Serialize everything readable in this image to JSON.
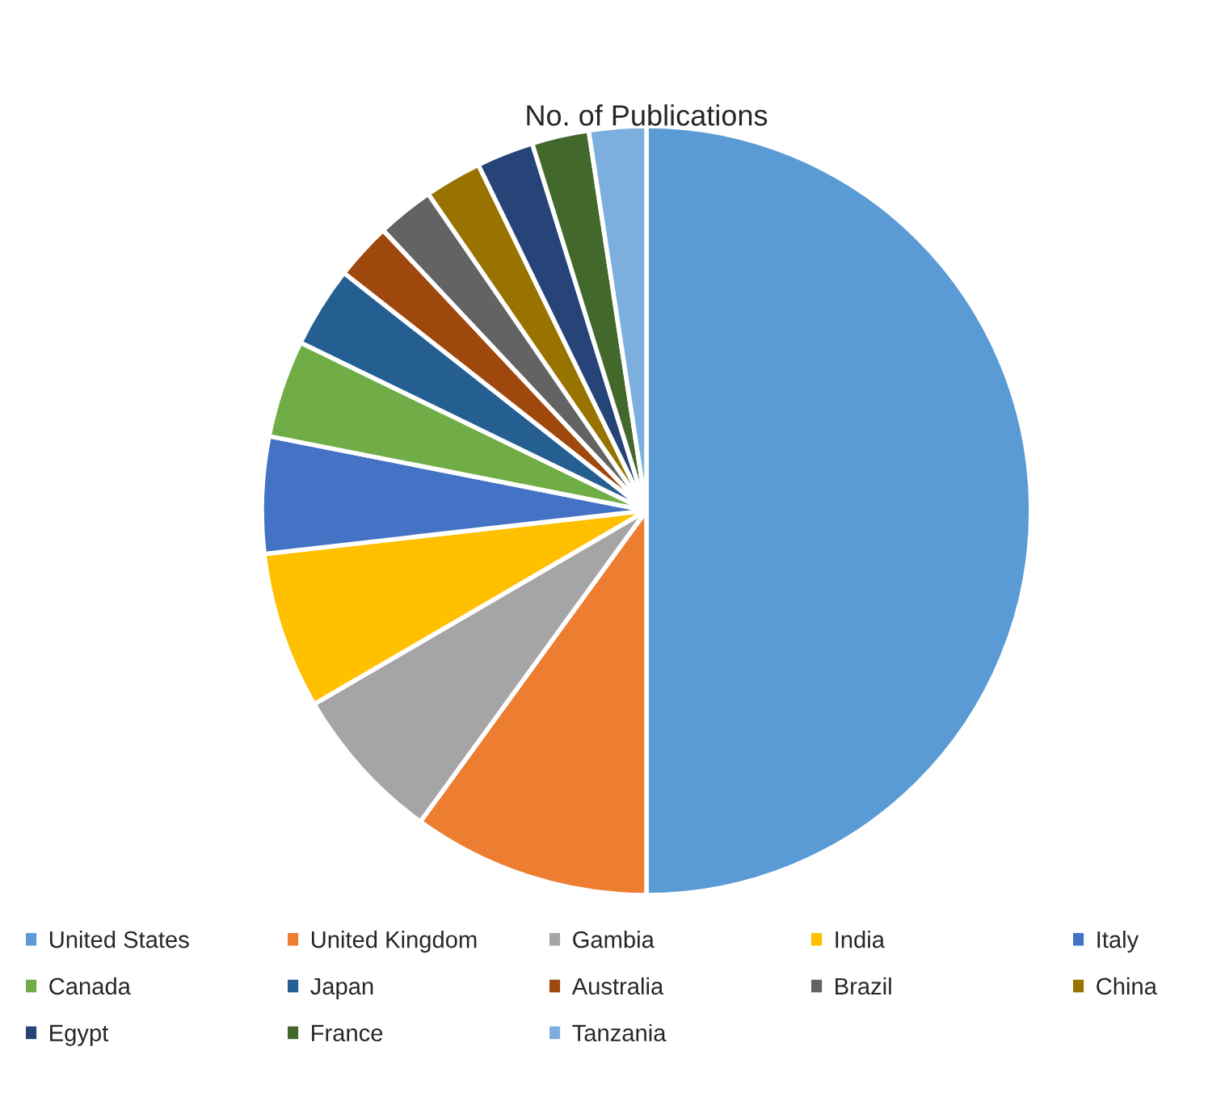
{
  "chart_data": {
    "type": "pie",
    "title": "No. of Publications",
    "categories": [
      "United States",
      "United Kingdom",
      "Gambia",
      "India",
      "Italy",
      "Canada",
      "Japan",
      "Australia",
      "Brazil",
      "China",
      "Egypt",
      "France",
      "Tanzania"
    ],
    "values": [
      50,
      10,
      6.6,
      6.6,
      4.9,
      4.1,
      3.4,
      2.4,
      2.4,
      2.4,
      2.4,
      2.4,
      2.4
    ],
    "colors": [
      "#5b9bd5",
      "#ed7d31",
      "#a5a5a5",
      "#ffc000",
      "#4472c4",
      "#70ad47",
      "#255e91",
      "#9e480e",
      "#636363",
      "#997300",
      "#264478",
      "#43682b",
      "#7cafdd"
    ],
    "legend": "bottom"
  }
}
